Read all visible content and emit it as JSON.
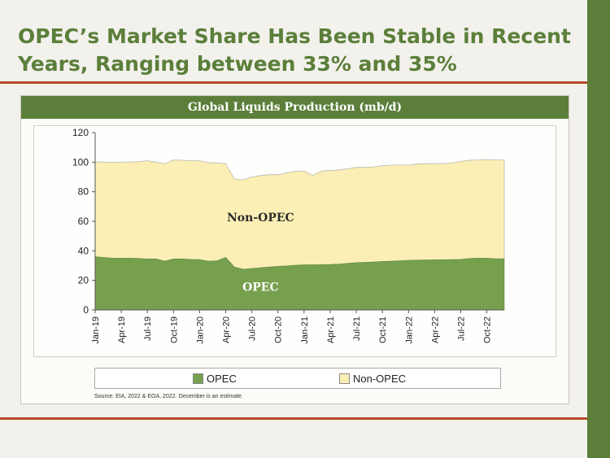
{
  "slide": {
    "title": "OPEC’s Market Share Has Been Stable in Recent Years, Ranging between 33% and 35%"
  },
  "colors": {
    "brand_green": "#5b7f3a",
    "rule_red": "#b24a2a",
    "opec_fill": "#76a04e",
    "non_opec_fill": "#fbefb5"
  },
  "chart": {
    "header": "Global Liquids Production (mb/d)",
    "legend": {
      "opec": "OPEC",
      "non_opec": "Non-OPEC"
    },
    "source": "Source: EIA, 2022 & EOA, 2022. December is an estimate."
  },
  "chart_data": {
    "type": "area",
    "title": "Global Liquids Production (mb/d)",
    "stacked": true,
    "ylim": [
      0,
      120
    ],
    "yticks": [
      0,
      20,
      40,
      60,
      80,
      100,
      120
    ],
    "grid": false,
    "legend_position": "bottom",
    "x": [
      "Jan-19",
      "Feb-19",
      "Mar-19",
      "Apr-19",
      "May-19",
      "Jun-19",
      "Jul-19",
      "Aug-19",
      "Sep-19",
      "Oct-19",
      "Nov-19",
      "Dec-19",
      "Jan-20",
      "Feb-20",
      "Mar-20",
      "Apr-20",
      "May-20",
      "Jun-20",
      "Jul-20",
      "Aug-20",
      "Sep-20",
      "Oct-20",
      "Nov-20",
      "Dec-20",
      "Jan-21",
      "Feb-21",
      "Mar-21",
      "Apr-21",
      "May-21",
      "Jun-21",
      "Jul-21",
      "Aug-21",
      "Sep-21",
      "Oct-21",
      "Nov-21",
      "Dec-21",
      "Jan-22",
      "Feb-22",
      "Mar-22",
      "Apr-22",
      "May-22",
      "Jun-22",
      "Jul-22",
      "Aug-22",
      "Sep-22",
      "Oct-22",
      "Nov-22",
      "Dec-22"
    ],
    "tick_labels": [
      "Jan-19",
      "Apr-19",
      "Jul-19",
      "Oct-19",
      "Jan-20",
      "Apr-20",
      "Jul-20",
      "Oct-20",
      "Jan-21",
      "Apr-21",
      "Jul-21",
      "Oct-21",
      "Jan-22",
      "Apr-22",
      "Jul-22",
      "Oct-22"
    ],
    "series": [
      {
        "name": "OPEC",
        "values": [
          36,
          35.5,
          35,
          35,
          35,
          34.8,
          34.5,
          34.5,
          33,
          34.5,
          34.5,
          34.2,
          34,
          33,
          33.2,
          35.5,
          29,
          27.5,
          28,
          28.5,
          29,
          29.5,
          29.8,
          30.2,
          30.5,
          30.5,
          30.6,
          30.7,
          31,
          31.5,
          32,
          32.2,
          32.4,
          32.8,
          33,
          33.2,
          33.5,
          33.7,
          33.8,
          33.9,
          33.9,
          34,
          34.2,
          34.8,
          35,
          35,
          34.7,
          34.5
        ]
      },
      {
        "name": "Non-OPEC",
        "values": [
          64.2,
          64.5,
          65,
          65,
          65.2,
          65.5,
          66.5,
          65.5,
          66,
          67,
          66.8,
          66.8,
          67,
          66.5,
          66.3,
          63.5,
          59.5,
          60.5,
          62,
          62.5,
          62.5,
          62,
          63,
          63.5,
          63.5,
          60.5,
          63.4,
          63.6,
          63.8,
          64,
          64.5,
          64.3,
          64.4,
          64.8,
          65,
          65,
          64.5,
          65,
          65.2,
          65.1,
          65.1,
          65.4,
          66.3,
          66.5,
          66.5,
          66.6,
          66.8,
          67
        ]
      }
    ],
    "annotations": [
      "Non-OPEC",
      "OPEC"
    ]
  }
}
